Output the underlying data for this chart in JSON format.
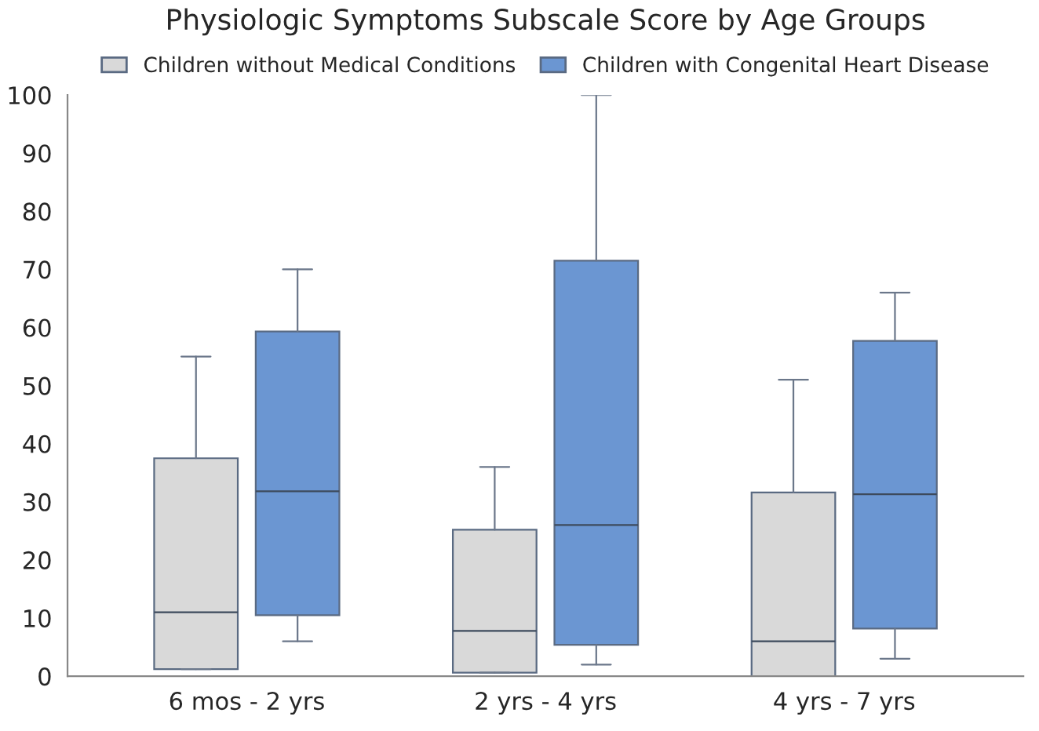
{
  "chart_data": {
    "type": "box",
    "title": "Physiologic Symptoms Subscale Score by Age Groups",
    "categories": [
      "6 mos - 2 yrs",
      "2 yrs - 4 yrs",
      "4 yrs - 7 yrs"
    ],
    "series": [
      {
        "name": "Children without Medical Conditions",
        "color": "#d9d9d9",
        "boxes": [
          {
            "low": 1.2,
            "q1": 1.2,
            "median": 11,
            "q3": 37.5,
            "high": 55
          },
          {
            "low": 0.6,
            "q1": 0.6,
            "median": 7.8,
            "q3": 25.2,
            "high": 36
          },
          {
            "low": 0,
            "q1": 0,
            "median": 6,
            "q3": 31.6,
            "high": 51
          }
        ]
      },
      {
        "name": "Children with Congenital Heart Disease",
        "color": "#6b96d2",
        "boxes": [
          {
            "low": 6,
            "q1": 10.5,
            "median": 31.8,
            "q3": 59.3,
            "high": 70
          },
          {
            "low": 2,
            "q1": 5.4,
            "median": 26,
            "q3": 71.5,
            "high": 100
          },
          {
            "low": 3,
            "q1": 8.2,
            "median": 31.3,
            "q3": 57.7,
            "high": 66
          }
        ]
      }
    ],
    "ylim": [
      0,
      100
    ],
    "yticks": [
      0,
      10,
      20,
      30,
      40,
      50,
      60,
      70,
      80,
      90,
      100
    ],
    "grid": false,
    "legend": "top"
  }
}
